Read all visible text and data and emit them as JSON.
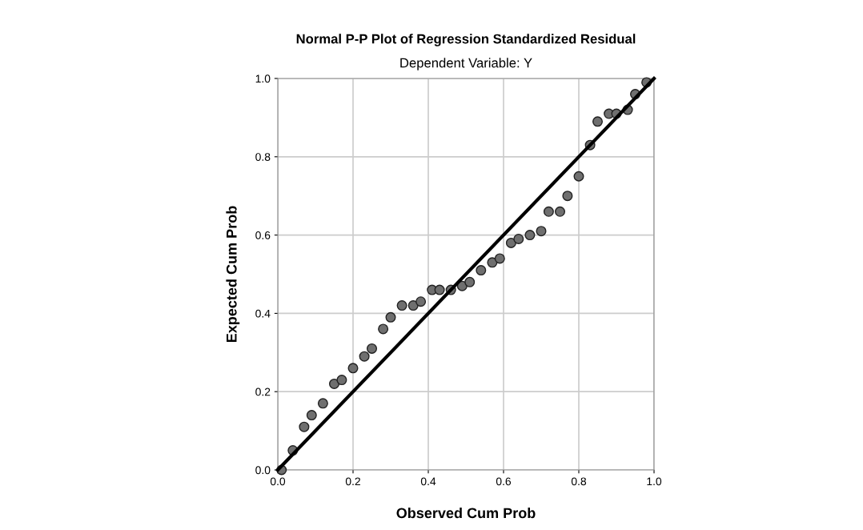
{
  "chart_data": {
    "type": "scatter",
    "title": "Normal P-P Plot of Regression Standardized Residual",
    "subtitle": "Dependent Variable: Y",
    "xlabel": "Observed Cum Prob",
    "ylabel": "Expected Cum Prob",
    "xlim": [
      0,
      1
    ],
    "ylim": [
      0,
      1
    ],
    "xticks": [
      {
        "value": 0,
        "label": "0.0"
      },
      {
        "value": 0.2,
        "label": "0.2"
      },
      {
        "value": 0.4,
        "label": "0.4"
      },
      {
        "value": 0.6,
        "label": "0.6"
      },
      {
        "value": 0.8,
        "label": "0.8"
      },
      {
        "value": 1,
        "label": "1.0"
      }
    ],
    "yticks": [
      {
        "value": 0,
        "label": "0.0"
      },
      {
        "value": 0.2,
        "label": "0.2"
      },
      {
        "value": 0.4,
        "label": "0.4"
      },
      {
        "value": 0.6,
        "label": "0.6"
      },
      {
        "value": 0.8,
        "label": "0.8"
      },
      {
        "value": 1,
        "label": "1.0"
      }
    ],
    "grid": true,
    "marker": "circle",
    "series": [
      {
        "color": "#6f6f6f",
        "x": [
          0.01,
          0.04,
          0.07,
          0.09,
          0.12,
          0.15,
          0.17,
          0.2,
          0.23,
          0.25,
          0.28,
          0.3,
          0.33,
          0.36,
          0.38,
          0.41,
          0.43,
          0.46,
          0.49,
          0.51,
          0.54,
          0.57,
          0.59,
          0.62,
          0.64,
          0.67,
          0.7,
          0.72,
          0.75,
          0.77,
          0.8,
          0.83,
          0.85,
          0.88,
          0.9,
          0.93,
          0.95,
          0.98
        ],
        "values": [
          0.0,
          0.05,
          0.11,
          0.14,
          0.17,
          0.22,
          0.23,
          0.26,
          0.29,
          0.31,
          0.36,
          0.39,
          0.42,
          0.42,
          0.43,
          0.46,
          0.46,
          0.46,
          0.47,
          0.48,
          0.51,
          0.53,
          0.54,
          0.58,
          0.59,
          0.6,
          0.61,
          0.66,
          0.66,
          0.7,
          0.75,
          0.83,
          0.89,
          0.91,
          0.91,
          0.92,
          0.96,
          0.99
        ]
      },
      {
        "type": "line",
        "color": "#000000",
        "marker": "none",
        "line_style": "solid",
        "x": [
          0,
          1
        ],
        "values": [
          0,
          1
        ]
      }
    ]
  }
}
